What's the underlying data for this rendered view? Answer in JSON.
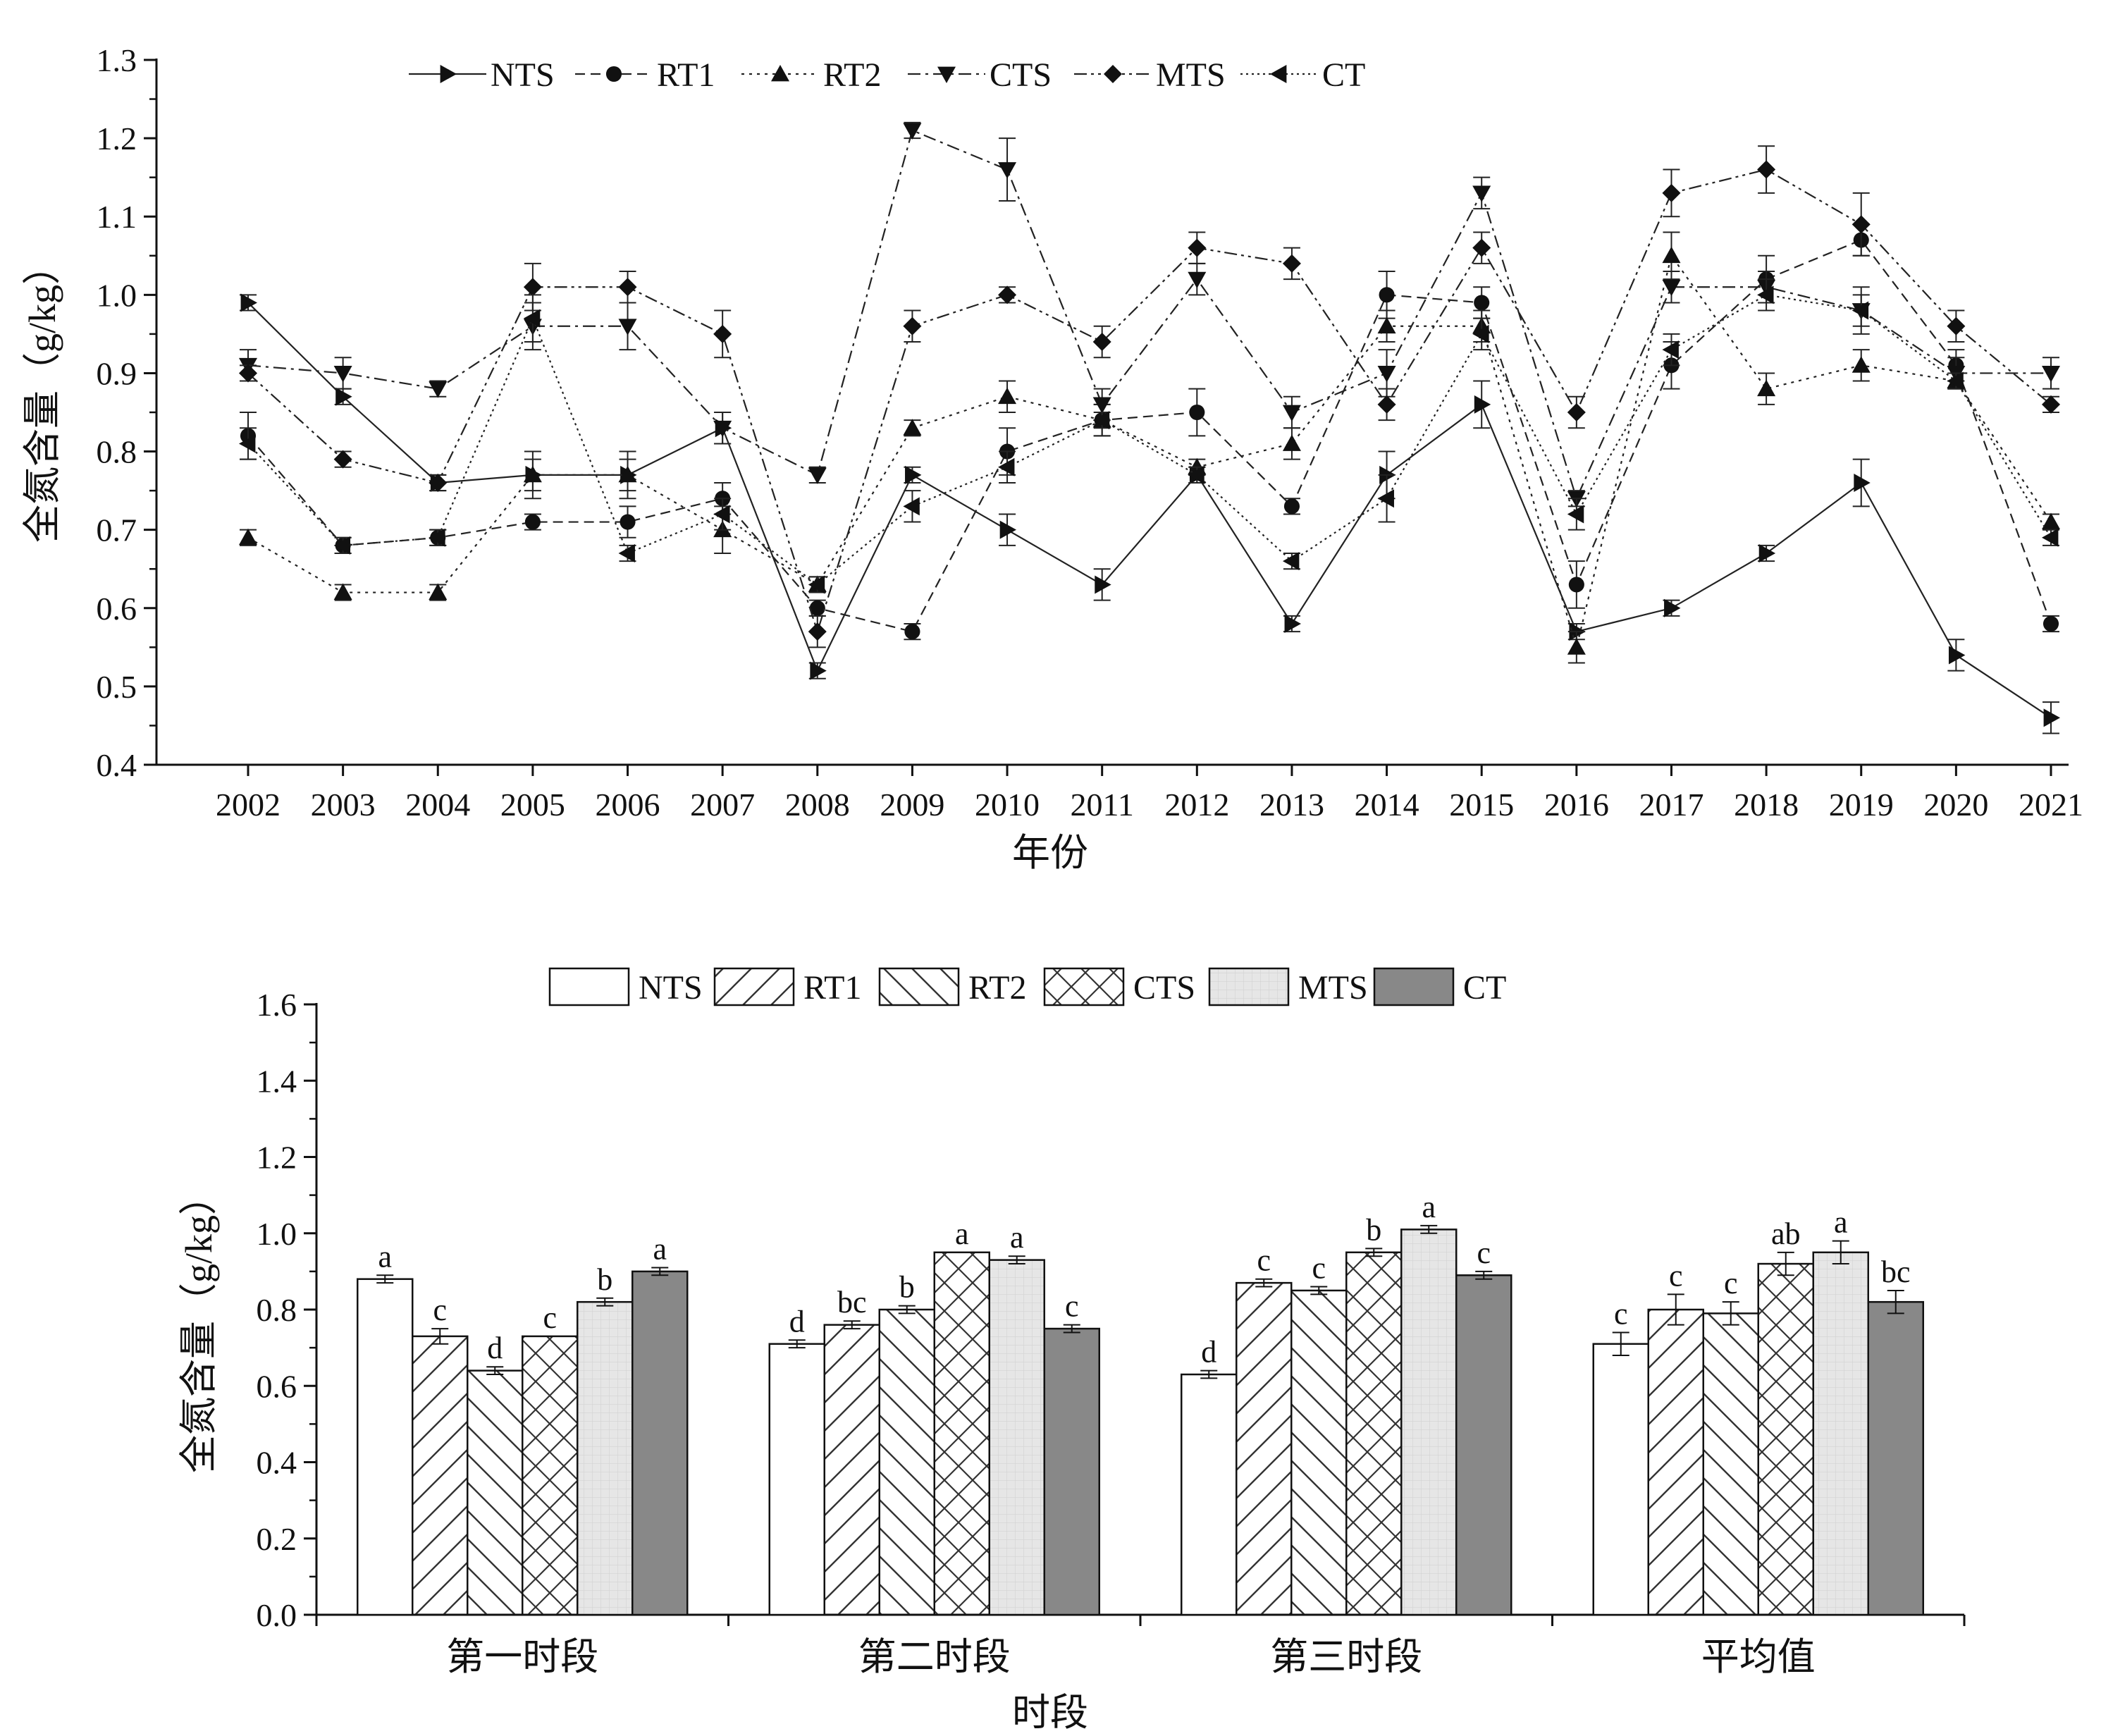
{
  "chart_data": [
    {
      "type": "line",
      "xlabel": "年份",
      "ylabel": "全氮含量（g/kg）",
      "ylim": [
        0.4,
        1.3
      ],
      "yticks": [
        "0.4",
        "0.5",
        "0.6",
        "0.7",
        "0.8",
        "0.9",
        "1.0",
        "1.1",
        "1.2",
        "1.3"
      ],
      "x": [
        "2002",
        "2003",
        "2004",
        "2005",
        "2006",
        "2007",
        "2008",
        "2009",
        "2010",
        "2011",
        "2012",
        "2013",
        "2014",
        "2015",
        "2016",
        "2017",
        "2018",
        "2019",
        "2020",
        "2021"
      ],
      "legend_position": "top",
      "series": [
        {
          "name": "NTS",
          "marker": "triangle-right",
          "dash": "solid",
          "values": [
            0.99,
            0.87,
            0.76,
            0.77,
            0.77,
            0.83,
            0.52,
            0.77,
            0.7,
            0.63,
            0.77,
            0.58,
            0.77,
            0.86,
            0.57,
            0.6,
            0.67,
            0.76,
            0.54,
            0.46
          ],
          "err": [
            0.01,
            0.01,
            0.01,
            0.02,
            0.02,
            0.02,
            0.01,
            0.01,
            0.02,
            0.02,
            0.01,
            0.01,
            0.03,
            0.03,
            0.01,
            0.01,
            0.01,
            0.03,
            0.02,
            0.02
          ]
        },
        {
          "name": "RT1",
          "marker": "circle",
          "dash": "dash",
          "values": [
            0.82,
            0.68,
            0.69,
            0.71,
            0.71,
            0.74,
            0.6,
            0.57,
            0.8,
            0.84,
            0.85,
            0.73,
            1.0,
            0.99,
            0.63,
            0.91,
            1.02,
            1.07,
            0.91,
            0.58
          ],
          "err": [
            0.03,
            0.01,
            0.01,
            0.01,
            0.02,
            0.02,
            0.01,
            0.01,
            0.03,
            0.02,
            0.03,
            0.01,
            0.03,
            0.02,
            0.03,
            0.03,
            0.03,
            0.02,
            0.02,
            0.01
          ]
        },
        {
          "name": "RT2",
          "marker": "triangle-up",
          "dash": "dot",
          "values": [
            0.69,
            0.62,
            0.62,
            0.77,
            0.77,
            0.7,
            0.63,
            0.83,
            0.87,
            0.84,
            0.78,
            0.81,
            0.96,
            0.96,
            0.55,
            1.05,
            0.88,
            0.91,
            0.89,
            0.71
          ],
          "err": [
            0.01,
            0.01,
            0.01,
            0.03,
            0.03,
            0.03,
            0.01,
            0.01,
            0.02,
            0.02,
            0.01,
            0.02,
            0.02,
            0.02,
            0.02,
            0.03,
            0.02,
            0.02,
            0.01,
            0.01
          ]
        },
        {
          "name": "CTS",
          "marker": "triangle-down",
          "dash": "dashdot",
          "values": [
            0.91,
            0.9,
            0.88,
            0.96,
            0.96,
            0.83,
            0.77,
            1.21,
            1.16,
            0.86,
            1.02,
            0.85,
            0.9,
            1.13,
            0.74,
            1.01,
            1.01,
            0.98,
            0.9,
            0.9
          ],
          "err": [
            0.02,
            0.02,
            0.01,
            0.03,
            0.03,
            0.02,
            0.01,
            0.01,
            0.04,
            0.02,
            0.02,
            0.02,
            0.03,
            0.02,
            0.01,
            0.02,
            0.02,
            0.03,
            0.02,
            0.02
          ]
        },
        {
          "name": "MTS",
          "marker": "diamond",
          "dash": "dashdotdot",
          "values": [
            0.9,
            0.79,
            0.76,
            1.01,
            1.01,
            0.95,
            0.57,
            0.96,
            1.0,
            0.94,
            1.06,
            1.04,
            0.86,
            1.06,
            0.85,
            1.13,
            1.16,
            1.09,
            0.96,
            0.86
          ],
          "err": [
            0.01,
            0.01,
            0.01,
            0.03,
            0.02,
            0.03,
            0.02,
            0.02,
            0.01,
            0.02,
            0.02,
            0.02,
            0.02,
            0.02,
            0.02,
            0.03,
            0.03,
            0.04,
            0.02,
            0.01
          ]
        },
        {
          "name": "CT",
          "marker": "triangle-left",
          "dash": "shortdot",
          "values": [
            0.81,
            0.68,
            0.69,
            0.97,
            0.67,
            0.72,
            0.63,
            0.73,
            0.78,
            0.84,
            0.77,
            0.66,
            0.74,
            0.95,
            0.72,
            0.93,
            1.0,
            0.98,
            0.89,
            0.69
          ],
          "err": [
            0.02,
            0.01,
            0.01,
            0.03,
            0.01,
            0.02,
            0.01,
            0.02,
            0.02,
            0.01,
            0.01,
            0.01,
            0.03,
            0.02,
            0.02,
            0.02,
            0.02,
            0.02,
            0.01,
            0.01
          ]
        }
      ]
    },
    {
      "type": "bar",
      "xlabel": "时段",
      "ylabel": "全氮含量（g/kg）",
      "ylim": [
        0.0,
        1.6
      ],
      "yticks": [
        "0.0",
        "0.2",
        "0.4",
        "0.6",
        "0.8",
        "1.0",
        "1.2",
        "1.4",
        "1.6"
      ],
      "categories": [
        "第一时段",
        "第二时段",
        "第三时段",
        "平均值"
      ],
      "legend_position": "top",
      "series": [
        {
          "name": "NTS",
          "pattern": "none",
          "values": [
            0.88,
            0.71,
            0.63,
            0.71
          ],
          "err": [
            0.01,
            0.01,
            0.01,
            0.03
          ],
          "sig": [
            "a",
            "d",
            "d",
            "c"
          ]
        },
        {
          "name": "RT1",
          "pattern": "forward-hatch",
          "values": [
            0.73,
            0.76,
            0.87,
            0.8
          ],
          "err": [
            0.02,
            0.01,
            0.01,
            0.04
          ],
          "sig": [
            "c",
            "bc",
            "c",
            "c"
          ]
        },
        {
          "name": "RT2",
          "pattern": "back-hatch",
          "values": [
            0.64,
            0.8,
            0.85,
            0.79
          ],
          "err": [
            0.01,
            0.01,
            0.01,
            0.03
          ],
          "sig": [
            "d",
            "b",
            "c",
            "c"
          ]
        },
        {
          "name": "CTS",
          "pattern": "cross-hatch",
          "values": [
            0.73,
            0.95,
            0.95,
            0.92
          ],
          "err": [
            0.0,
            0.0,
            0.01,
            0.03
          ],
          "sig": [
            "c",
            "a",
            "b",
            "ab"
          ]
        },
        {
          "name": "MTS",
          "pattern": "light-grid",
          "values": [
            0.82,
            0.93,
            1.01,
            0.95
          ],
          "err": [
            0.01,
            0.01,
            0.01,
            0.03
          ],
          "sig": [
            "b",
            "a",
            "a",
            "a"
          ]
        },
        {
          "name": "CT",
          "pattern": "dark-fill",
          "values": [
            0.9,
            0.75,
            0.89,
            0.82
          ],
          "err": [
            0.01,
            0.01,
            0.01,
            0.03
          ],
          "sig": [
            "a",
            "c",
            "c",
            "bc"
          ]
        }
      ]
    }
  ]
}
